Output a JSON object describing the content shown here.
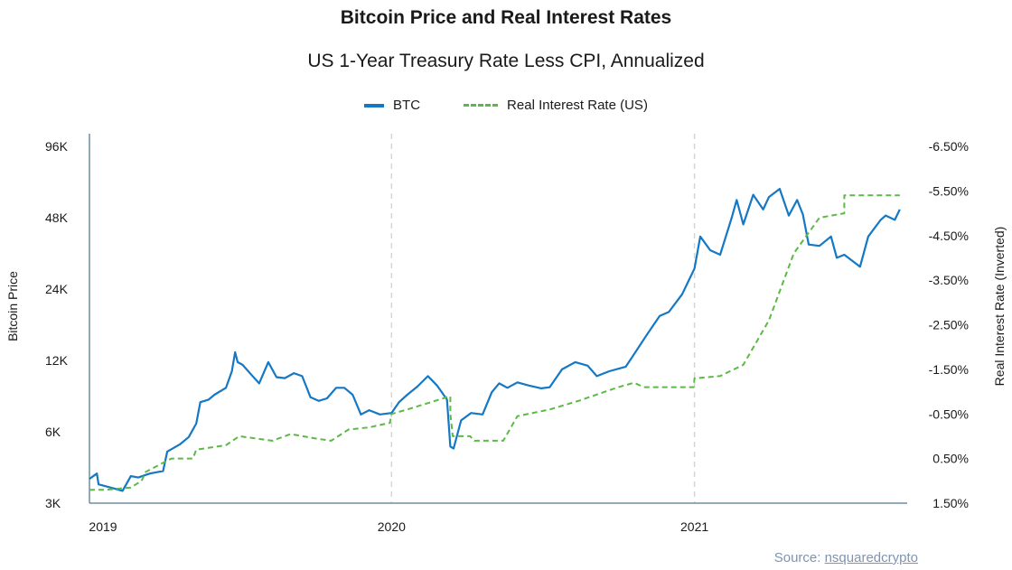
{
  "chart_data": {
    "type": "line",
    "title": "Bitcoin Price and Real Interest Rates",
    "subtitle": "US 1-Year Treasury Rate Less CPI, Annualized",
    "ylabel_left": "Bitcoin Price",
    "ylabel_right": "Real Interest Rate (Inverted)",
    "left_axis": {
      "scale": "log",
      "range": [
        3000,
        96000
      ],
      "ticks": [
        {
          "v": 3000,
          "label": "3K"
        },
        {
          "v": 6000,
          "label": "6K"
        },
        {
          "v": 12000,
          "label": "12K"
        },
        {
          "v": 24000,
          "label": "24K"
        },
        {
          "v": 48000,
          "label": "48K"
        },
        {
          "v": 96000,
          "label": "96K"
        }
      ]
    },
    "right_axis": {
      "inverted": true,
      "range": [
        1.5,
        -6.5
      ],
      "ticks": [
        "1.50%",
        "0.50%",
        "-0.50%",
        "-1.50%",
        "-2.50%",
        "-3.50%",
        "-4.50%",
        "-5.50%",
        "-6.50%"
      ],
      "tick_values": [
        1.5,
        0.5,
        -0.5,
        -1.5,
        -2.5,
        -3.5,
        -4.5,
        -5.5,
        -6.5
      ]
    },
    "x_axis": {
      "range": [
        "2019-01-01",
        "2021-09-15"
      ],
      "ticks": [
        {
          "date": "2019-01-01",
          "label": "2019"
        },
        {
          "date": "2020-01-01",
          "label": "2020"
        },
        {
          "date": "2021-01-01",
          "label": "2021"
        }
      ]
    },
    "grid": "vertical dashed at year boundaries",
    "legend_position": "top-center",
    "series": [
      {
        "name": "BTC",
        "color": "#1478c4",
        "style": "solid",
        "axis": "left",
        "points": [
          [
            "2019-01-01",
            3800
          ],
          [
            "2019-01-10",
            4000
          ],
          [
            "2019-01-12",
            3600
          ],
          [
            "2019-02-01",
            3450
          ],
          [
            "2019-02-10",
            3380
          ],
          [
            "2019-02-20",
            3900
          ],
          [
            "2019-03-01",
            3850
          ],
          [
            "2019-03-15",
            4000
          ],
          [
            "2019-03-31",
            4100
          ],
          [
            "2019-04-05",
            4950
          ],
          [
            "2019-04-20",
            5300
          ],
          [
            "2019-05-01",
            5700
          ],
          [
            "2019-05-10",
            6500
          ],
          [
            "2019-05-15",
            8000
          ],
          [
            "2019-05-25",
            8200
          ],
          [
            "2019-06-01",
            8600
          ],
          [
            "2019-06-15",
            9200
          ],
          [
            "2019-06-22",
            10800
          ],
          [
            "2019-06-26",
            13000
          ],
          [
            "2019-06-29",
            11800
          ],
          [
            "2019-07-05",
            11500
          ],
          [
            "2019-07-15",
            10500
          ],
          [
            "2019-07-25",
            9600
          ],
          [
            "2019-08-05",
            11800
          ],
          [
            "2019-08-15",
            10200
          ],
          [
            "2019-08-25",
            10100
          ],
          [
            "2019-09-05",
            10600
          ],
          [
            "2019-09-15",
            10300
          ],
          [
            "2019-09-25",
            8400
          ],
          [
            "2019-10-05",
            8100
          ],
          [
            "2019-10-15",
            8300
          ],
          [
            "2019-10-26",
            9200
          ],
          [
            "2019-11-05",
            9200
          ],
          [
            "2019-11-15",
            8600
          ],
          [
            "2019-11-25",
            7100
          ],
          [
            "2019-12-05",
            7400
          ],
          [
            "2019-12-18",
            7100
          ],
          [
            "2020-01-01",
            7200
          ],
          [
            "2020-01-10",
            8000
          ],
          [
            "2020-01-20",
            8600
          ],
          [
            "2020-02-01",
            9300
          ],
          [
            "2020-02-14",
            10300
          ],
          [
            "2020-02-25",
            9400
          ],
          [
            "2020-03-08",
            8200
          ],
          [
            "2020-03-12",
            5200
          ],
          [
            "2020-03-16",
            5100
          ],
          [
            "2020-03-25",
            6700
          ],
          [
            "2020-04-06",
            7200
          ],
          [
            "2020-04-20",
            7100
          ],
          [
            "2020-05-01",
            8800
          ],
          [
            "2020-05-10",
            9600
          ],
          [
            "2020-05-20",
            9200
          ],
          [
            "2020-06-01",
            9700
          ],
          [
            "2020-06-15",
            9400
          ],
          [
            "2020-06-30",
            9150
          ],
          [
            "2020-07-10",
            9250
          ],
          [
            "2020-07-25",
            11000
          ],
          [
            "2020-08-10",
            11800
          ],
          [
            "2020-08-25",
            11400
          ],
          [
            "2020-09-05",
            10300
          ],
          [
            "2020-09-20",
            10800
          ],
          [
            "2020-10-10",
            11300
          ],
          [
            "2020-10-21",
            12900
          ],
          [
            "2020-11-05",
            15500
          ],
          [
            "2020-11-20",
            18500
          ],
          [
            "2020-12-01",
            19200
          ],
          [
            "2020-12-17",
            22800
          ],
          [
            "2021-01-01",
            29300
          ],
          [
            "2021-01-08",
            40000
          ],
          [
            "2021-01-20",
            35000
          ],
          [
            "2021-02-01",
            33500
          ],
          [
            "2021-02-15",
            48000
          ],
          [
            "2021-02-21",
            57000
          ],
          [
            "2021-03-01",
            45000
          ],
          [
            "2021-03-13",
            60000
          ],
          [
            "2021-03-25",
            52000
          ],
          [
            "2021-04-01",
            58700
          ],
          [
            "2021-04-14",
            63500
          ],
          [
            "2021-04-25",
            49000
          ],
          [
            "2021-05-05",
            57000
          ],
          [
            "2021-05-12",
            49500
          ],
          [
            "2021-05-19",
            37000
          ],
          [
            "2021-06-01",
            36500
          ],
          [
            "2021-06-15",
            40000
          ],
          [
            "2021-06-22",
            32500
          ],
          [
            "2021-07-01",
            33500
          ],
          [
            "2021-07-20",
            29800
          ],
          [
            "2021-07-30",
            40000
          ],
          [
            "2021-08-14",
            47000
          ],
          [
            "2021-08-20",
            49000
          ],
          [
            "2021-08-31",
            47000
          ],
          [
            "2021-09-06",
            52000
          ]
        ]
      },
      {
        "name": "Real Interest Rate (US)",
        "color": "#5cb947",
        "style": "dashed",
        "axis": "right",
        "points": [
          [
            "2019-01-01",
            1.2
          ],
          [
            "2019-01-20",
            1.2
          ],
          [
            "2019-02-20",
            1.15
          ],
          [
            "2019-03-05",
            1.0
          ],
          [
            "2019-03-10",
            0.8
          ],
          [
            "2019-04-10",
            0.5
          ],
          [
            "2019-05-06",
            0.5
          ],
          [
            "2019-05-10",
            0.3
          ],
          [
            "2019-06-15",
            0.2
          ],
          [
            "2019-07-01",
            0.0
          ],
          [
            "2019-08-10",
            0.1
          ],
          [
            "2019-09-01",
            -0.05
          ],
          [
            "2019-10-01",
            0.05
          ],
          [
            "2019-10-20",
            0.1
          ],
          [
            "2019-11-10",
            -0.15
          ],
          [
            "2019-12-05",
            -0.2
          ],
          [
            "2019-12-30",
            -0.3
          ],
          [
            "2020-01-01",
            -0.5
          ],
          [
            "2020-01-20",
            -0.6
          ],
          [
            "2020-02-15",
            -0.75
          ],
          [
            "2020-03-12",
            -0.9
          ],
          [
            "2020-03-12",
            -0.5
          ],
          [
            "2020-03-15",
            0.0
          ],
          [
            "2020-04-05",
            0.0
          ],
          [
            "2020-04-10",
            0.1
          ],
          [
            "2020-05-15",
            0.1
          ],
          [
            "2020-06-01",
            -0.45
          ],
          [
            "2020-07-10",
            -0.6
          ],
          [
            "2020-08-15",
            -0.8
          ],
          [
            "2020-09-15",
            -1.0
          ],
          [
            "2020-10-01",
            -1.1
          ],
          [
            "2020-10-20",
            -1.2
          ],
          [
            "2020-11-01",
            -1.1
          ],
          [
            "2020-12-31",
            -1.1
          ],
          [
            "2021-01-01",
            -1.3
          ],
          [
            "2021-02-01",
            -1.35
          ],
          [
            "2021-03-01",
            -1.6
          ],
          [
            "2021-04-01",
            -2.6
          ],
          [
            "2021-05-01",
            -4.1
          ],
          [
            "2021-06-01",
            -4.9
          ],
          [
            "2021-07-01",
            -5.0
          ],
          [
            "2021-07-01",
            -5.4
          ],
          [
            "2021-09-06",
            -5.4
          ]
        ]
      }
    ]
  },
  "source": {
    "prefix": "Source: ",
    "link": "nsquaredcrypto"
  }
}
